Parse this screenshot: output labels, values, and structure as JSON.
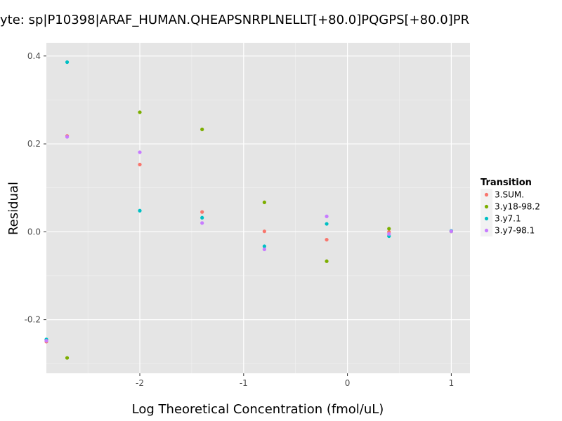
{
  "chart_data": {
    "type": "scatter",
    "title": "yte: sp|P10398|ARAF_HUMAN.QHEAPSNRPLNELLT[+80.0]PQGPS[+80.0]PR",
    "xlabel": "Log Theoretical Concentration (fmol/uL)",
    "ylabel": "Residual",
    "xlim": [
      -2.9,
      1.18
    ],
    "ylim": [
      -0.322,
      0.43
    ],
    "x_ticks": [
      -2,
      -1,
      0,
      1
    ],
    "x_tick_labels": [
      "-2",
      "-1",
      "0",
      "1"
    ],
    "y_ticks": [
      -0.2,
      0.0,
      0.2,
      0.4
    ],
    "y_tick_labels": [
      "-0.2",
      "0.0",
      "0.2",
      "0.4"
    ],
    "grid": true,
    "background": "#e5e5e5",
    "legend": {
      "title": "Transition",
      "position": "right"
    },
    "series": [
      {
        "name": "3.SUM.",
        "color": "#f8766d",
        "points": [
          [
            -2.9,
            -0.25
          ],
          [
            -2.7,
            0.218
          ],
          [
            -2.0,
            0.153
          ],
          [
            -1.4,
            0.045
          ],
          [
            -0.8,
            0.001
          ],
          [
            -0.2,
            -0.018
          ],
          [
            0.4,
            0.0
          ],
          [
            1.0,
            0.001
          ]
        ]
      },
      {
        "name": "3.y18-98.2",
        "color": "#7cae00",
        "points": [
          [
            -2.7,
            -0.287
          ],
          [
            -2.0,
            0.272
          ],
          [
            -1.4,
            0.233
          ],
          [
            -0.8,
            0.067
          ],
          [
            -0.2,
            -0.067
          ],
          [
            0.4,
            0.007
          ],
          [
            1.0,
            0.001
          ]
        ]
      },
      {
        "name": "3.y7.1",
        "color": "#00bfc4",
        "points": [
          [
            -2.9,
            -0.245
          ],
          [
            -2.7,
            0.386
          ],
          [
            -2.0,
            0.048
          ],
          [
            -1.4,
            0.032
          ],
          [
            -0.8,
            -0.033
          ],
          [
            -0.2,
            0.018
          ],
          [
            0.4,
            -0.01
          ],
          [
            1.0,
            0.002
          ]
        ]
      },
      {
        "name": "3.y7-98.1",
        "color": "#c77cff",
        "points": [
          [
            -2.9,
            -0.248
          ],
          [
            -2.7,
            0.216
          ],
          [
            -2.0,
            0.181
          ],
          [
            -1.4,
            0.02
          ],
          [
            -0.8,
            -0.04
          ],
          [
            -0.2,
            0.035
          ],
          [
            0.4,
            -0.005
          ],
          [
            1.0,
            0.001
          ]
        ]
      }
    ]
  }
}
